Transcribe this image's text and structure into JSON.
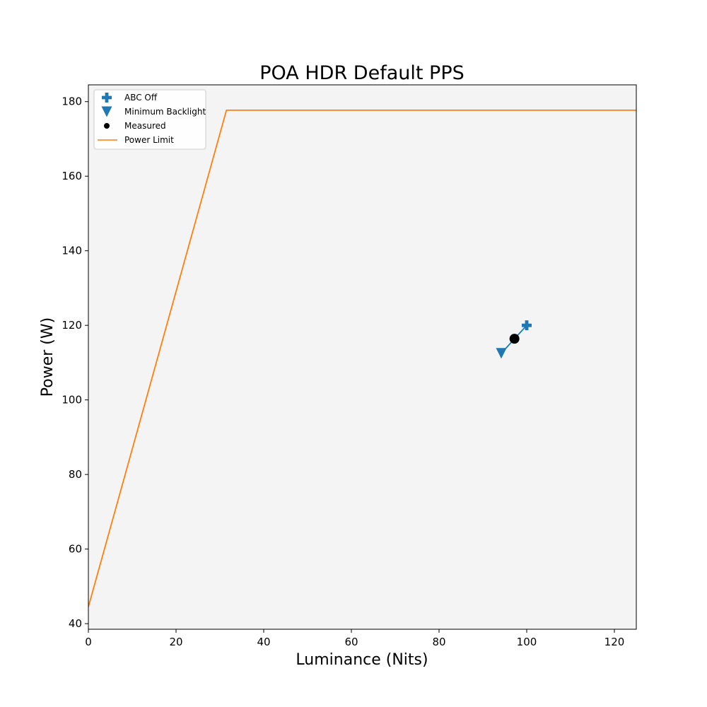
{
  "chart_data": {
    "type": "line",
    "title": "POA HDR Default PPS",
    "xlabel": "Luminance (Nits)",
    "ylabel": "Power (W)",
    "xlim": [
      0,
      125
    ],
    "ylim": [
      38.5,
      184.5
    ],
    "xticks": [
      0,
      20,
      40,
      60,
      80,
      100,
      120
    ],
    "yticks": [
      40,
      60,
      80,
      100,
      120,
      140,
      160,
      180
    ],
    "grid": false,
    "background": "#f4f4f4",
    "legend_position": "top-left",
    "series": [
      {
        "name": "Power Limit",
        "kind": "line",
        "color": "#ff7f0e",
        "points": [
          [
            0,
            44.5
          ],
          [
            31.5,
            177.7
          ],
          [
            125,
            177.7
          ]
        ]
      },
      {
        "name": "ABC Off",
        "kind": "marker",
        "marker": "plus",
        "color": "#1f77b4",
        "points": [
          [
            100,
            120
          ]
        ]
      },
      {
        "name": "Minimum Backlight",
        "kind": "marker",
        "marker": "triangle-down",
        "color": "#1f77b4",
        "points": [
          [
            94.2,
            112.5
          ]
        ]
      },
      {
        "name": "Measured",
        "kind": "marker",
        "marker": "circle",
        "color": "#000000",
        "points": [
          [
            97.2,
            116.4
          ]
        ]
      }
    ],
    "connector": {
      "color": "#1f77b4",
      "points": [
        [
          94.2,
          112.5
        ],
        [
          100,
          120
        ]
      ]
    },
    "legend": [
      "ABC Off",
      "Minimum Backlight",
      "Measured",
      "Power Limit"
    ]
  }
}
